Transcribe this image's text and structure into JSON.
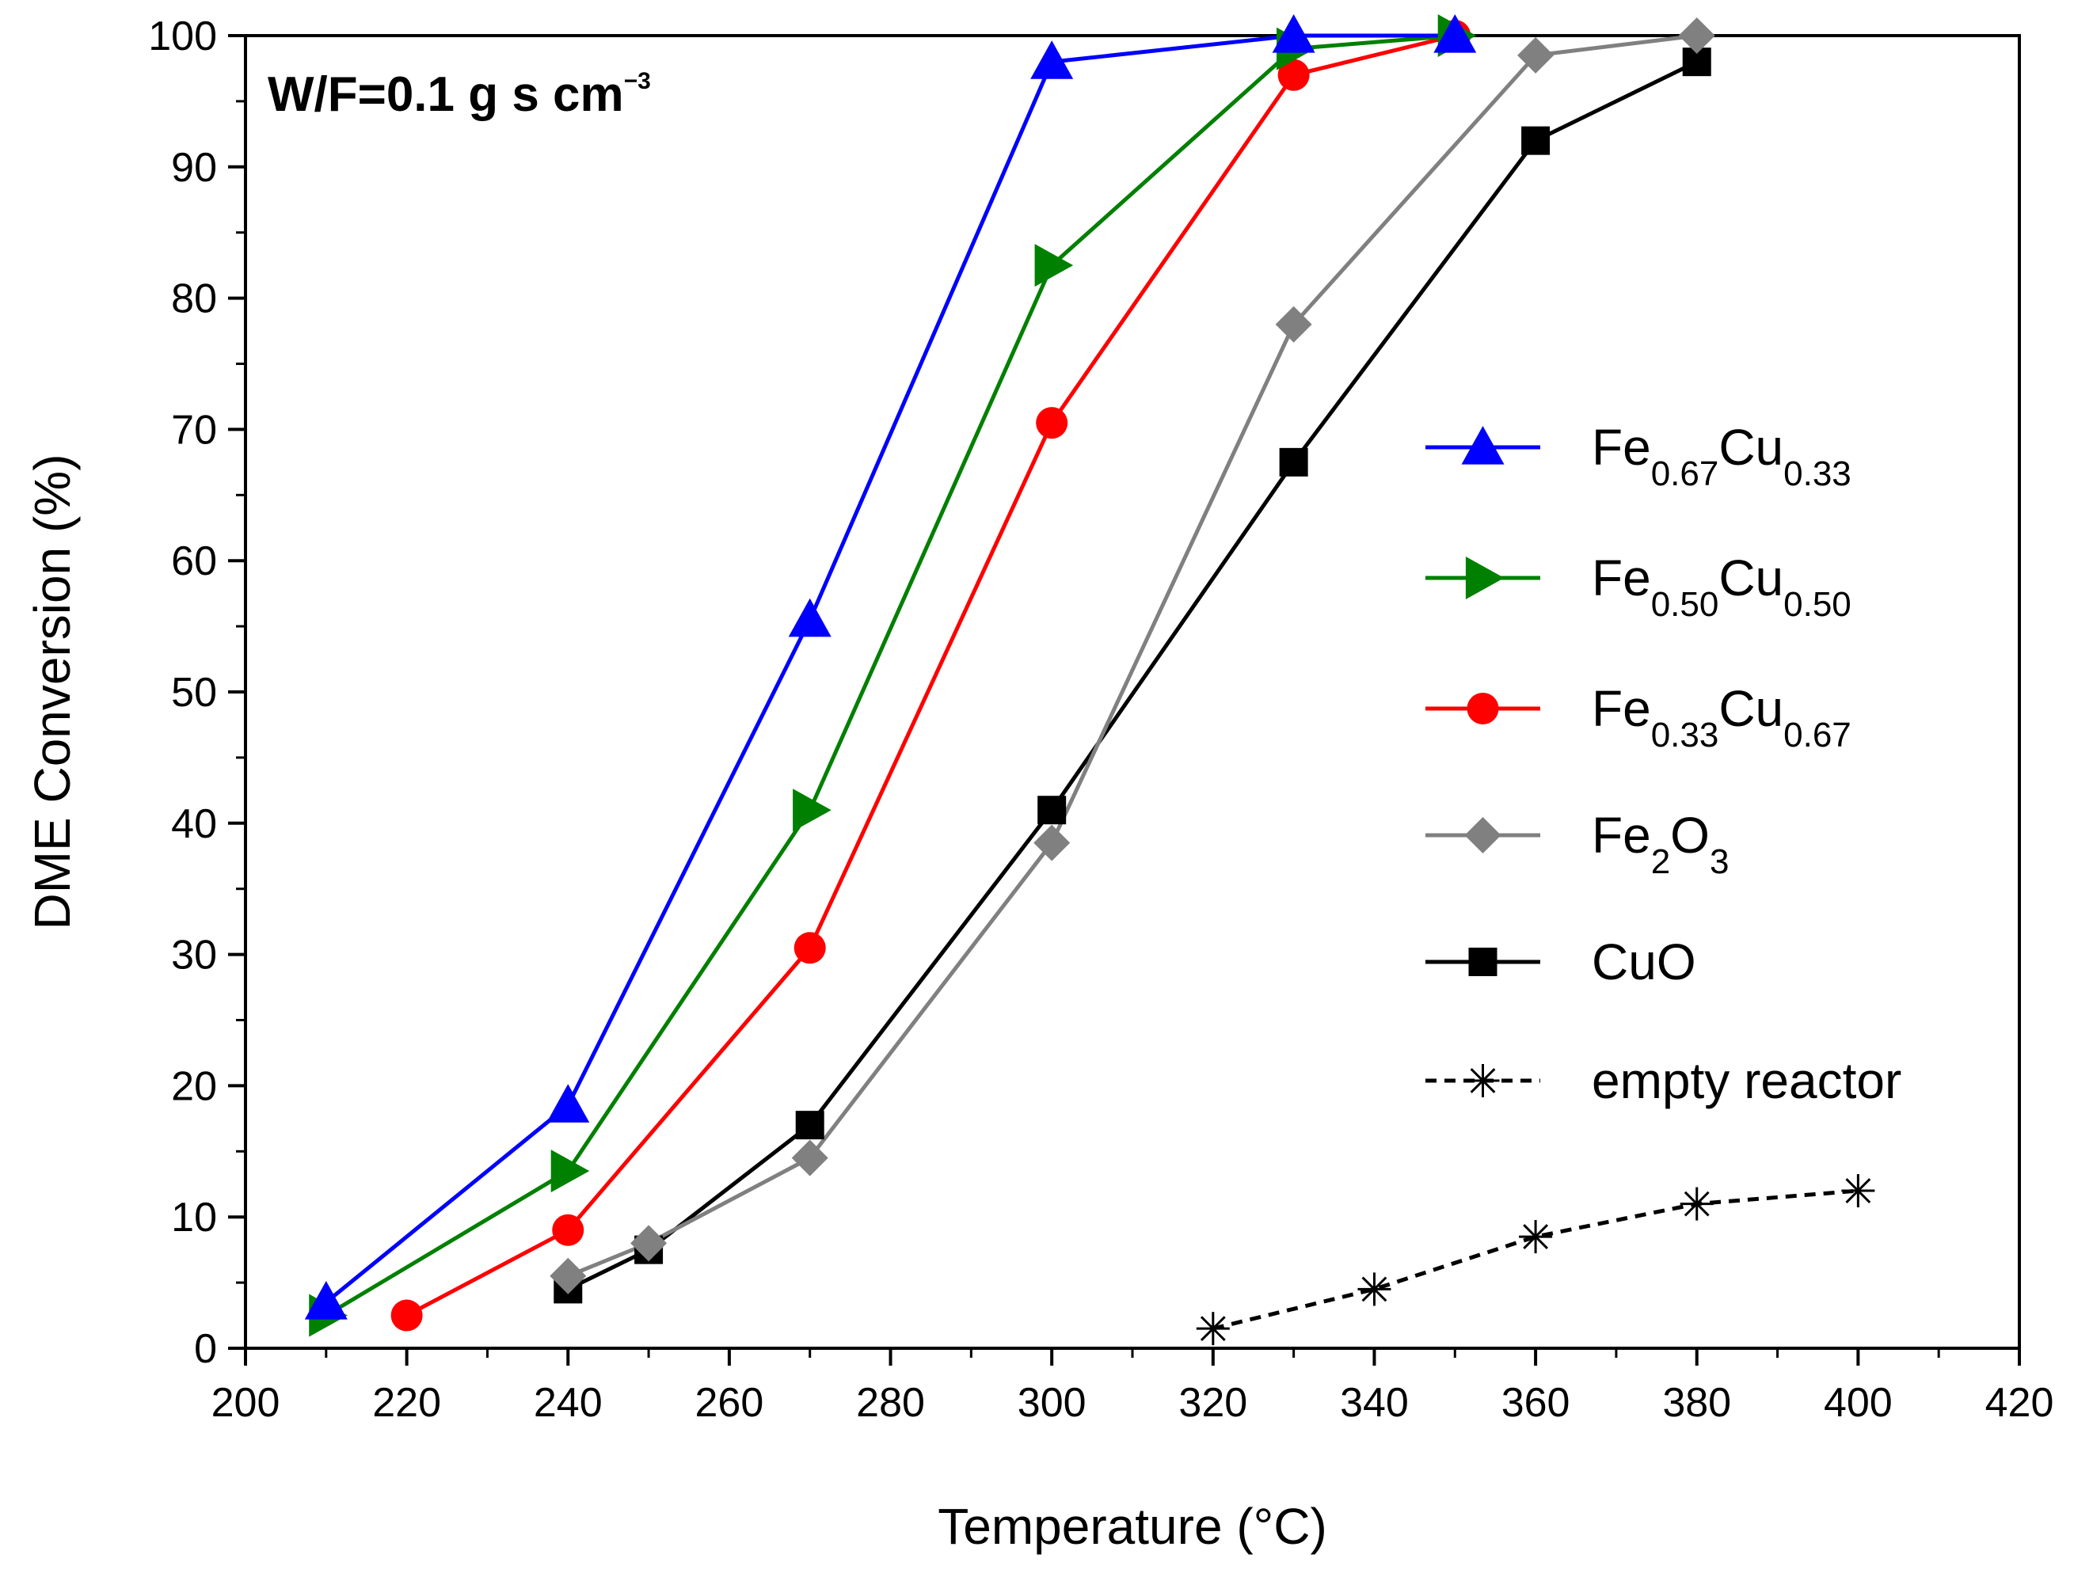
{
  "chart_data": {
    "type": "line",
    "title": "",
    "xlabel": "Temperature (°C)",
    "ylabel": "DME Conversion (%)",
    "xlim": [
      200,
      420
    ],
    "ylim": [
      0,
      100
    ],
    "xticks": [
      200,
      220,
      240,
      260,
      280,
      300,
      320,
      340,
      360,
      380,
      400,
      420
    ],
    "yticks": [
      0,
      10,
      20,
      30,
      40,
      50,
      60,
      70,
      80,
      90,
      100
    ],
    "annotation": {
      "base": "W/F=0.1 g s cm",
      "sup": "−3"
    },
    "legend_position": "right",
    "series": [
      {
        "name": "Fe0.67Cu0.33",
        "label_main": "Fe",
        "sub1": "0.67",
        "mid": "Cu",
        "sub2": "0.33",
        "color": "#0000FF",
        "marker": "triangle-up",
        "dashed": false,
        "x": [
          210,
          240,
          270,
          300,
          330,
          350
        ],
        "y": [
          3.5,
          18.5,
          55.5,
          98,
          100,
          100
        ]
      },
      {
        "name": "Fe0.50Cu0.50",
        "label_main": "Fe",
        "sub1": "0.50",
        "mid": "Cu",
        "sub2": "0.50",
        "color": "#008000",
        "marker": "triangle-right",
        "dashed": false,
        "x": [
          210,
          240,
          270,
          300,
          330,
          350
        ],
        "y": [
          2.5,
          13.5,
          41,
          82.5,
          99,
          100
        ]
      },
      {
        "name": "Fe0.33Cu0.67",
        "label_main": "Fe",
        "sub1": "0.33",
        "mid": "Cu",
        "sub2": "0.67",
        "color": "#FF0000",
        "marker": "circle",
        "dashed": false,
        "x": [
          220,
          240,
          270,
          300,
          330,
          350
        ],
        "y": [
          2.5,
          9,
          30.5,
          70.5,
          97,
          100
        ]
      },
      {
        "name": "Fe2O3",
        "label_main": "Fe",
        "sub1": "2",
        "mid": "O",
        "sub2": "3",
        "color": "#808080",
        "marker": "diamond",
        "dashed": false,
        "x": [
          240,
          250,
          270,
          300,
          330,
          360,
          380
        ],
        "y": [
          5.5,
          8,
          14.5,
          38.5,
          78,
          98.5,
          100
        ]
      },
      {
        "name": "CuO",
        "label_main": "CuO",
        "sub1": "",
        "mid": "",
        "sub2": "",
        "color": "#000000",
        "marker": "square",
        "dashed": false,
        "x": [
          240,
          250,
          270,
          300,
          330,
          360,
          380
        ],
        "y": [
          4.5,
          7.5,
          17,
          41,
          67.5,
          92,
          98
        ]
      },
      {
        "name": "empty reactor",
        "label_main": "empty reactor",
        "sub1": "",
        "mid": "",
        "sub2": "",
        "color": "#000000",
        "marker": "asterisk",
        "dashed": true,
        "x": [
          320,
          340,
          360,
          380,
          400
        ],
        "y": [
          1.5,
          4.5,
          8.5,
          11,
          12
        ]
      }
    ]
  }
}
